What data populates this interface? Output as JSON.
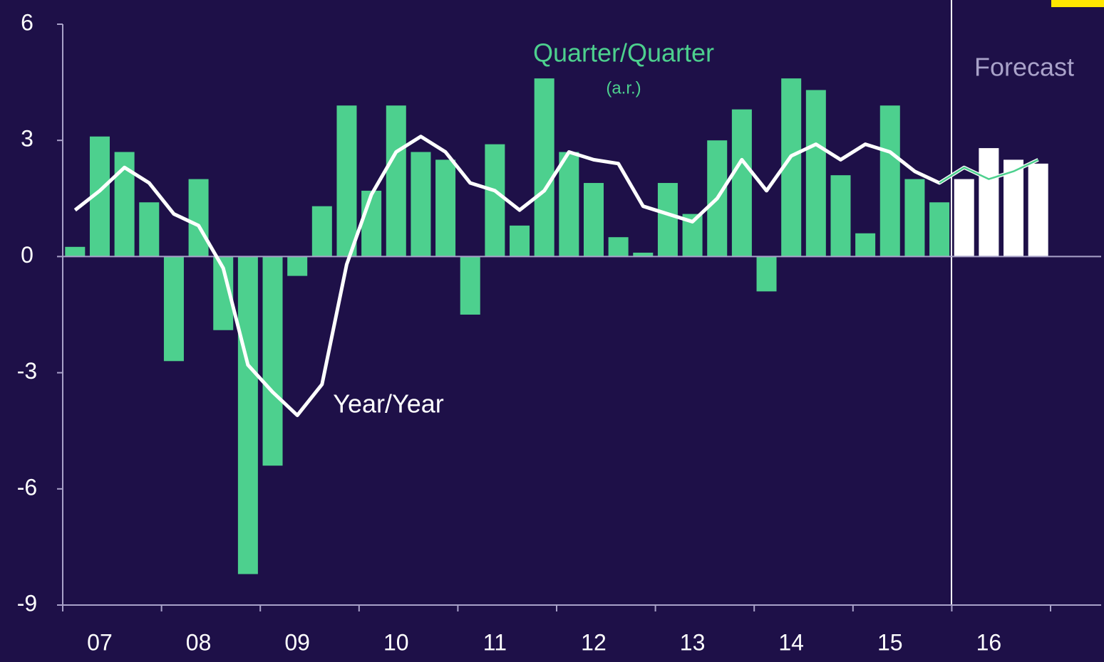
{
  "chart_data": {
    "type": "bar_line",
    "categories": [
      null,
      "07",
      null,
      null,
      null,
      "08",
      null,
      null,
      null,
      "09",
      null,
      null,
      null,
      "10",
      null,
      null,
      null,
      "11",
      null,
      null,
      null,
      "12",
      null,
      null,
      null,
      "13",
      null,
      null,
      null,
      "14",
      null,
      null,
      null,
      "15",
      null,
      null,
      null,
      "16",
      null,
      null
    ],
    "series": [
      {
        "name": "Quarter/Quarter",
        "type": "bar",
        "color": "#4dd08e",
        "forecast_color": "#ffffff",
        "values": [
          0.25,
          3.1,
          2.7,
          1.4,
          -2.7,
          2.0,
          -1.9,
          -8.2,
          -5.4,
          -0.5,
          1.3,
          3.9,
          1.7,
          3.9,
          2.7,
          2.5,
          -1.5,
          2.9,
          0.8,
          4.6,
          2.7,
          1.9,
          0.5,
          0.1,
          1.9,
          1.1,
          3.0,
          3.8,
          -0.9,
          4.6,
          4.3,
          2.1,
          0.6,
          3.9,
          2.0,
          1.4,
          2.0,
          2.8,
          2.5,
          2.4
        ]
      },
      {
        "name": "Year/Year",
        "type": "line",
        "color": "#ffffff",
        "forecast_color": "#4dd08e",
        "values": [
          1.2,
          1.7,
          2.3,
          1.9,
          1.1,
          0.8,
          -0.3,
          -2.8,
          -3.5,
          -4.1,
          -3.3,
          -0.2,
          1.6,
          2.7,
          3.1,
          2.7,
          1.9,
          1.7,
          1.2,
          1.7,
          2.7,
          2.5,
          2.4,
          1.3,
          1.1,
          0.9,
          1.5,
          2.5,
          1.7,
          2.6,
          2.9,
          2.5,
          2.9,
          2.7,
          2.2,
          1.9,
          2.3,
          2.0,
          2.2,
          2.5
        ]
      }
    ],
    "forecast_start": 36,
    "annotations": {
      "qq_note": "(a.r.)",
      "forecast": "Forecast"
    },
    "ylim": [
      -9,
      6
    ],
    "yticks": [
      -9,
      -6,
      -3,
      0,
      3,
      6
    ]
  }
}
